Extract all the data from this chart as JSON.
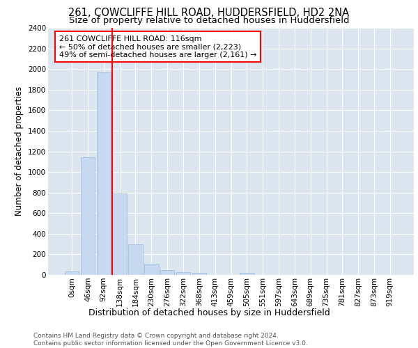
{
  "title_line1": "261, COWCLIFFE HILL ROAD, HUDDERSFIELD, HD2 2NA",
  "title_line2": "Size of property relative to detached houses in Huddersfield",
  "xlabel": "Distribution of detached houses by size in Huddersfield",
  "ylabel": "Number of detached properties",
  "bar_color": "#c6d9f0",
  "bar_edge_color": "#9ab8d8",
  "vline_color": "red",
  "annotation_text": "261 COWCLIFFE HILL ROAD: 116sqm\n← 50% of detached houses are smaller (2,223)\n49% of semi-detached houses are larger (2,161) →",
  "annotation_box_color": "white",
  "annotation_box_edge": "red",
  "categories": [
    "0sqm",
    "46sqm",
    "92sqm",
    "138sqm",
    "184sqm",
    "230sqm",
    "276sqm",
    "322sqm",
    "368sqm",
    "413sqm",
    "459sqm",
    "505sqm",
    "551sqm",
    "597sqm",
    "643sqm",
    "689sqm",
    "735sqm",
    "781sqm",
    "827sqm",
    "873sqm",
    "919sqm"
  ],
  "bar_heights": [
    35,
    1140,
    1970,
    790,
    300,
    105,
    45,
    30,
    20,
    0,
    0,
    20,
    0,
    0,
    0,
    0,
    0,
    0,
    0,
    0,
    0
  ],
  "ylim": [
    0,
    2400
  ],
  "yticks": [
    0,
    200,
    400,
    600,
    800,
    1000,
    1200,
    1400,
    1600,
    1800,
    2000,
    2200,
    2400
  ],
  "background_color": "#ffffff",
  "plot_bg_color": "#dce6f0",
  "grid_color": "#ffffff",
  "footer_text": "Contains HM Land Registry data © Crown copyright and database right 2024.\nContains public sector information licensed under the Open Government Licence v3.0.",
  "title_fontsize": 10.5,
  "subtitle_fontsize": 9.5,
  "tick_fontsize": 7.5,
  "xlabel_fontsize": 9,
  "ylabel_fontsize": 8.5,
  "annotation_fontsize": 8,
  "footer_fontsize": 6.5
}
